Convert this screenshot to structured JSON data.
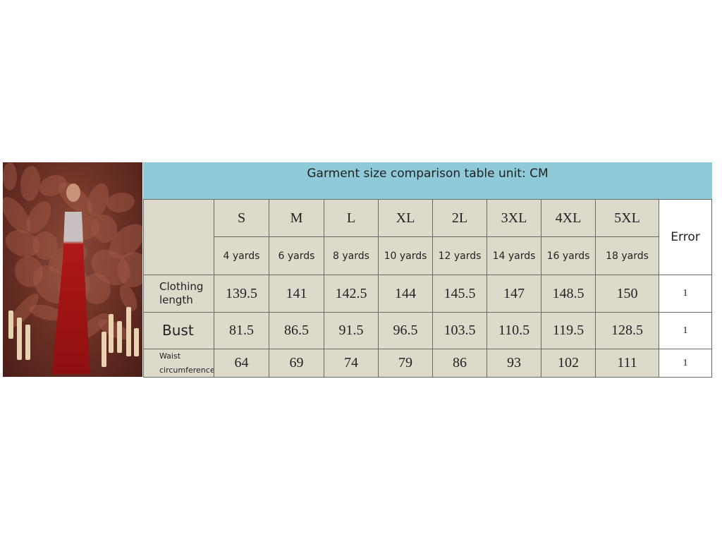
{
  "title": "Garment size comparison table unit: CM",
  "sizes": [
    "S",
    "M",
    "L",
    "XL",
    "2L",
    "3XL",
    "4XL",
    "5XL"
  ],
  "yards": [
    "4 yards",
    "6 yards",
    "8 yards",
    "10 yards",
    "12 yards",
    "14 yards",
    "16 yards",
    "18 yards"
  ],
  "error_label": "Error",
  "rows": [
    {
      "label": "Clothing length",
      "values": [
        "139.5",
        "141",
        "142.5",
        "144",
        "145.5",
        "147",
        "148.5",
        "150"
      ],
      "error": "1"
    },
    {
      "label": "Bust",
      "values": [
        "81.5",
        "86.5",
        "91.5",
        "96.5",
        "103.5",
        "110.5",
        "119.5",
        "128.5"
      ],
      "error": "1"
    },
    {
      "label_top": "Waist",
      "label_bottom": "circumference",
      "values": [
        "64",
        "69",
        "74",
        "79",
        "86",
        "93",
        "102",
        "111"
      ],
      "error": "1"
    }
  ],
  "colors": {
    "header": "#8fcad8",
    "cell": "#dedacb",
    "dress": "#b01818"
  }
}
